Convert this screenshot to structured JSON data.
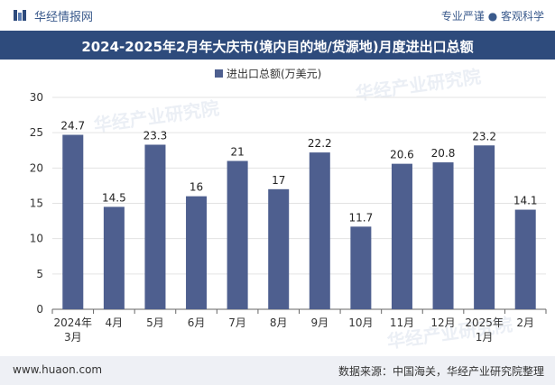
{
  "header": {
    "brand": "华经情报网",
    "slogan": "专业严谨 ● 客观科学"
  },
  "footer": {
    "site": "www.huaon.com",
    "source": "数据来源：中国海关，华经产业研究院整理"
  },
  "watermark": "华经产业研究院",
  "chart_data": {
    "type": "bar",
    "title": "2024-2025年2月年大庆市(境内目的地/货源地)月度进出口总额",
    "legend": "进出口总额(万美元)",
    "categories": [
      "2024年3月",
      "4月",
      "5月",
      "6月",
      "7月",
      "8月",
      "9月",
      "10月",
      "11月",
      "12月",
      "2025年1月",
      "2月"
    ],
    "values": [
      24.7,
      14.5,
      23.3,
      16,
      21,
      17,
      22.2,
      11.7,
      20.6,
      20.8,
      23.2,
      14.1
    ],
    "value_labels": [
      "24.7",
      "14.5",
      "23.3",
      "16",
      "21",
      "17",
      "22.2",
      "11.7",
      "20.6",
      "20.8",
      "23.2",
      "14.1"
    ],
    "yticks": [
      "0",
      "5",
      "10",
      "15",
      "20",
      "25",
      "30"
    ],
    "ylim": [
      0,
      30
    ],
    "bar_color": "#4e5f8f"
  }
}
